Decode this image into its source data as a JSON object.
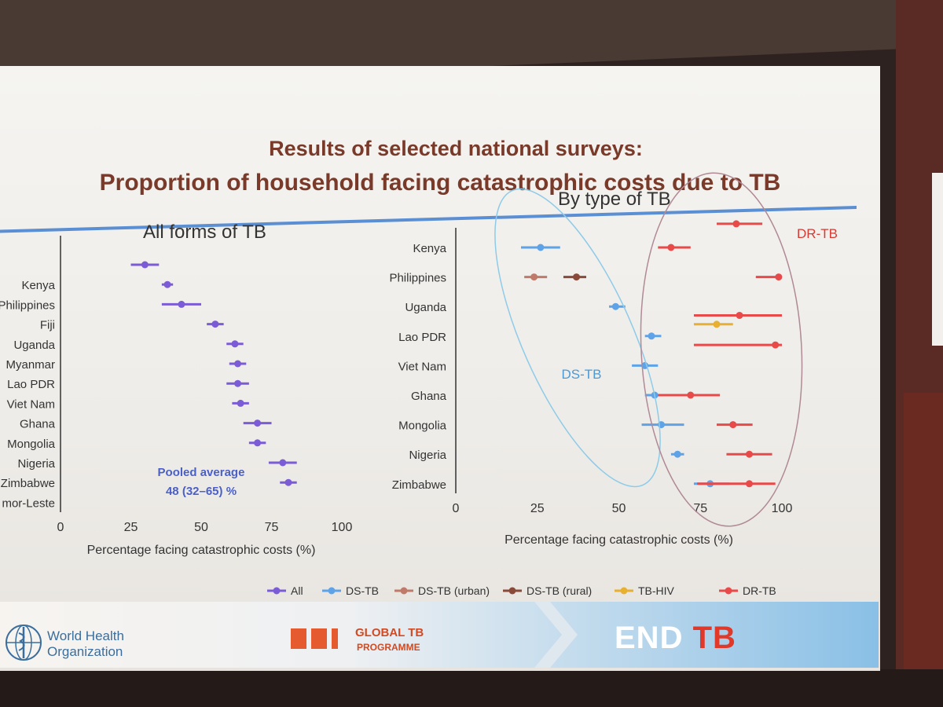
{
  "slide": {
    "title_line1": "Results of selected national surveys:",
    "title_line2": "Proportion of household facing catastrophic costs due to TB"
  },
  "footer": {
    "who_line1": "World Health",
    "who_line2": "Organization",
    "gtb_line1": "GLOBAL TB",
    "gtb_line2": "PROGRAMME",
    "end_word": "END",
    "tb_word": "TB"
  },
  "colors": {
    "All": "#7b5cd6",
    "DS-TB": "#5ea3e8",
    "DS-TB (urban)": "#c07a6a",
    "DS-TB (rural)": "#8a4a3a",
    "TB-HIV": "#e8b030",
    "DR-TB": "#e84a4a"
  },
  "legend": [
    "All",
    "DS-TB",
    "DS-TB (urban)",
    "DS-TB (rural)",
    "TB-HIV",
    "DR-TB"
  ],
  "chart_data": [
    {
      "type": "scatter",
      "title": "All forms of TB",
      "xlabel": "Percentage facing catastrophic costs (%)",
      "xlim": [
        0,
        100
      ],
      "xticks": [
        0,
        25,
        50,
        75,
        100
      ],
      "annotation": [
        "Pooled average",
        "48 (32–65) %"
      ],
      "rows": [
        "",
        "Kenya",
        "Philippines",
        "Fiji",
        "Uganda",
        "Myanmar",
        "Lao PDR",
        "Viet Nam",
        "Ghana",
        "Mongolia",
        "Nigeria",
        "Zimbabwe",
        "mor-Leste"
      ],
      "series": [
        {
          "name": "All",
          "points": [
            {
              "row": 0,
              "value": 30,
              "low": 25,
              "high": 35
            },
            {
              "row": 1,
              "value": 38,
              "low": 36,
              "high": 40
            },
            {
              "row": 2,
              "value": 43,
              "low": 36,
              "high": 50
            },
            {
              "row": 3,
              "value": 55,
              "low": 52,
              "high": 58
            },
            {
              "row": 4,
              "value": 62,
              "low": 59,
              "high": 65
            },
            {
              "row": 5,
              "value": 63,
              "low": 60,
              "high": 66
            },
            {
              "row": 6,
              "value": 63,
              "low": 59,
              "high": 67
            },
            {
              "row": 7,
              "value": 64,
              "low": 61,
              "high": 67
            },
            {
              "row": 8,
              "value": 70,
              "low": 65,
              "high": 75
            },
            {
              "row": 9,
              "value": 70,
              "low": 67,
              "high": 73
            },
            {
              "row": 10,
              "value": 79,
              "low": 74,
              "high": 84
            },
            {
              "row": 11,
              "value": 81,
              "low": 78,
              "high": 84
            }
          ]
        }
      ]
    },
    {
      "type": "scatter",
      "title": "By type of TB",
      "xlabel": "Percentage facing catastrophic costs (%)",
      "xlim": [
        0,
        100
      ],
      "xticks": [
        0,
        25,
        50,
        75,
        100
      ],
      "group_labels": [
        "DS-TB",
        "DR-TB"
      ],
      "rows": [
        "Kenya",
        "Philippines",
        "Uganda",
        "Lao PDR",
        "Viet Nam",
        "Ghana",
        "Mongolia",
        "Nigeria",
        "Zimbabwe"
      ],
      "series": [
        {
          "name": "DS-TB",
          "points": [
            {
              "row": 0,
              "value": 26,
              "low": 20,
              "high": 32
            },
            {
              "row": 2,
              "value": 49,
              "low": 47,
              "high": 52
            },
            {
              "row": 3,
              "value": 60,
              "low": 58,
              "high": 63
            },
            {
              "row": 4,
              "value": 58,
              "low": 54,
              "high": 62
            },
            {
              "row": 5,
              "value": 61,
              "low": 58,
              "high": 64
            },
            {
              "row": 6,
              "value": 63,
              "low": 57,
              "high": 70
            },
            {
              "row": 7,
              "value": 68,
              "low": 66,
              "high": 70
            },
            {
              "row": 8,
              "value": 78,
              "low": 73,
              "high": 84
            }
          ]
        },
        {
          "name": "DS-TB (urban)",
          "points": [
            {
              "row": 1,
              "value": 24,
              "low": 21,
              "high": 28
            }
          ]
        },
        {
          "name": "DS-TB (rural)",
          "points": [
            {
              "row": 1,
              "value": 37,
              "low": 33,
              "high": 40
            }
          ]
        },
        {
          "name": "TB-HIV",
          "points": [
            {
              "row": 2.6,
              "value": 80,
              "low": 73,
              "high": 85
            }
          ]
        },
        {
          "name": "DR-TB",
          "points": [
            {
              "row": -0.8,
              "value": 86,
              "low": 80,
              "high": 94
            },
            {
              "row": 0,
              "value": 66,
              "low": 62,
              "high": 72
            },
            {
              "row": 1,
              "value": 99,
              "low": 92,
              "high": 100
            },
            {
              "row": 2.3,
              "value": 87,
              "low": 73,
              "high": 100
            },
            {
              "row": 3.3,
              "value": 98,
              "low": 73,
              "high": 100
            },
            {
              "row": 5,
              "value": 72,
              "low": 62,
              "high": 81
            },
            {
              "row": 6,
              "value": 85,
              "low": 80,
              "high": 91
            },
            {
              "row": 7,
              "value": 90,
              "low": 83,
              "high": 97
            },
            {
              "row": 8,
              "value": 90,
              "low": 74,
              "high": 98
            }
          ]
        }
      ]
    }
  ]
}
